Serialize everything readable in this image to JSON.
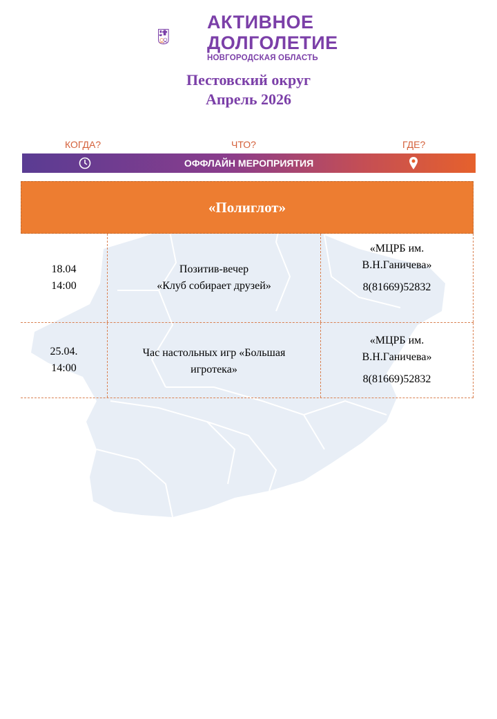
{
  "logo": {
    "line1": "АКТИВНОЕ",
    "line2": "ДОЛГОЛЕТИЕ",
    "line3": "НОВГОРОДСКАЯ ОБЛАСТЬ",
    "color": "#7b3fa8"
  },
  "header": {
    "title": "Пестовский округ",
    "subtitle": "Апрель 2026"
  },
  "columns": {
    "when": "КОГДА?",
    "what": "ЧТО?",
    "where": "ГДЕ?"
  },
  "band": {
    "label": "ОФФЛАЙН МЕРОПРИЯТИЯ",
    "left_icon": "clock-icon",
    "right_icon": "map-pin-icon"
  },
  "table": {
    "heading": "«Полиглот»",
    "rows": [
      {
        "date": "18.04",
        "time": "14:00",
        "event_line1": "Позитив-вечер",
        "event_line2": "«Клуб собирает друзей»",
        "place_line1": "«МЦРБ им.",
        "place_line2": "В.Н.Ганичева»",
        "phone": "8(81669)52832"
      },
      {
        "date": "25.04.",
        "time": "14:00",
        "event_line1": "Час настольных игр «Большая",
        "event_line2": "игротека»",
        "place_line1": "«МЦРБ им.",
        "place_line2": "В.Н.Ганичева»",
        "phone": "8(81669)52832"
      }
    ]
  },
  "colors": {
    "accent_orange": "#ed7d31",
    "brand_purple": "#7b3fa8",
    "map_fill": "#e8eef6"
  }
}
